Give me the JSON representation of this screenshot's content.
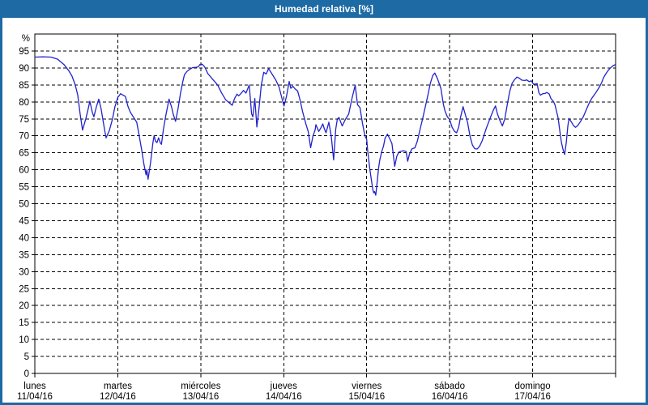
{
  "window": {
    "title": "Humedad relativa [%]",
    "titlebar_color": "#1d6aa5",
    "frame_color": "#1d6aa5",
    "background_color": "#ffffff"
  },
  "chart_data": {
    "type": "line",
    "title": "Humedad relativa [%]",
    "ylabel": "%",
    "xlabel": "",
    "ylim": [
      0,
      100
    ],
    "y_ticks": [
      0,
      5,
      10,
      15,
      20,
      25,
      30,
      35,
      40,
      45,
      50,
      55,
      60,
      65,
      70,
      75,
      80,
      85,
      90,
      95
    ],
    "grid": "dashed-black",
    "legend_position": "none",
    "line_color": "#2222cc",
    "axis_color": "#000000",
    "x_days": [
      {
        "name": "lunes",
        "date": "11/04/16"
      },
      {
        "name": "martes",
        "date": "12/04/16"
      },
      {
        "name": "miércoles",
        "date": "13/04/16"
      },
      {
        "name": "jueves",
        "date": "14/04/16"
      },
      {
        "name": "viernes",
        "date": "15/04/16"
      },
      {
        "name": "sábado",
        "date": "16/04/16"
      },
      {
        "name": "domingo",
        "date": "17/04/16"
      }
    ],
    "xlim_days": [
      0,
      7
    ],
    "series": [
      {
        "name": "Humedad relativa",
        "points": [
          [
            0.0,
            93.2
          ],
          [
            0.097,
            93.3
          ],
          [
            0.195,
            93.2
          ],
          [
            0.273,
            92.6
          ],
          [
            0.351,
            91.0
          ],
          [
            0.409,
            89.2
          ],
          [
            0.448,
            87.6
          ],
          [
            0.487,
            85.0
          ],
          [
            0.517,
            82.0
          ],
          [
            0.546,
            76.5
          ],
          [
            0.575,
            71.7
          ],
          [
            0.614,
            75.0
          ],
          [
            0.643,
            78.0
          ],
          [
            0.663,
            80.2
          ],
          [
            0.692,
            77.0
          ],
          [
            0.712,
            75.6
          ],
          [
            0.741,
            78.5
          ],
          [
            0.77,
            80.8
          ],
          [
            0.799,
            78.0
          ],
          [
            0.829,
            73.5
          ],
          [
            0.858,
            69.4
          ],
          [
            0.897,
            71.5
          ],
          [
            0.936,
            75.0
          ],
          [
            0.965,
            78.5
          ],
          [
            1.0,
            81.3
          ],
          [
            1.033,
            82.4
          ],
          [
            1.063,
            82.0
          ],
          [
            1.092,
            81.6
          ],
          [
            1.121,
            78.8
          ],
          [
            1.15,
            77.0
          ],
          [
            1.189,
            75.5
          ],
          [
            1.228,
            74.0
          ],
          [
            1.258,
            70.0
          ],
          [
            1.287,
            66.0
          ],
          [
            1.316,
            61.5
          ],
          [
            1.34,
            58.5
          ],
          [
            1.35,
            60.0
          ],
          [
            1.365,
            57.2
          ],
          [
            1.394,
            62.0
          ],
          [
            1.423,
            68.0
          ],
          [
            1.438,
            70.1
          ],
          [
            1.453,
            68.5
          ],
          [
            1.472,
            68.0
          ],
          [
            1.492,
            69.4
          ],
          [
            1.511,
            68.0
          ],
          [
            1.526,
            67.5
          ],
          [
            1.55,
            72.0
          ],
          [
            1.579,
            76.0
          ],
          [
            1.618,
            80.8
          ],
          [
            1.648,
            78.5
          ],
          [
            1.667,
            76.5
          ],
          [
            1.696,
            74.3
          ],
          [
            1.726,
            78.0
          ],
          [
            1.755,
            82.5
          ],
          [
            1.784,
            86.0
          ],
          [
            1.803,
            88.0
          ],
          [
            1.833,
            89.0
          ],
          [
            1.862,
            89.5
          ],
          [
            1.901,
            90.1
          ],
          [
            1.94,
            90.2
          ],
          [
            1.969,
            90.3
          ],
          [
            1.989,
            91.0
          ],
          [
            2.018,
            91.1
          ],
          [
            2.047,
            90.3
          ],
          [
            2.086,
            88.3
          ],
          [
            2.145,
            86.6
          ],
          [
            2.203,
            85.0
          ],
          [
            2.252,
            82.6
          ],
          [
            2.301,
            80.6
          ],
          [
            2.34,
            79.8
          ],
          [
            2.379,
            79.0
          ],
          [
            2.408,
            81.0
          ],
          [
            2.437,
            82.3
          ],
          [
            2.457,
            81.8
          ],
          [
            2.486,
            82.5
          ],
          [
            2.515,
            83.4
          ],
          [
            2.545,
            82.6
          ],
          [
            2.584,
            85.0
          ],
          [
            2.613,
            76.5
          ],
          [
            2.628,
            75.6
          ],
          [
            2.652,
            81.0
          ],
          [
            2.676,
            72.6
          ],
          [
            2.701,
            78.0
          ],
          [
            2.73,
            85.0
          ],
          [
            2.759,
            88.7
          ],
          [
            2.788,
            88.2
          ],
          [
            2.818,
            89.8
          ],
          [
            2.857,
            88.3
          ],
          [
            2.905,
            86.4
          ],
          [
            2.944,
            84.4
          ],
          [
            2.974,
            81.5
          ],
          [
            3.003,
            78.8
          ],
          [
            3.032,
            81.5
          ],
          [
            3.066,
            86.0
          ],
          [
            3.085,
            84.0
          ],
          [
            3.11,
            84.6
          ],
          [
            3.139,
            83.8
          ],
          [
            3.168,
            83.2
          ],
          [
            3.198,
            80.4
          ],
          [
            3.227,
            77.2
          ],
          [
            3.266,
            73.6
          ],
          [
            3.295,
            71.3
          ],
          [
            3.324,
            66.5
          ],
          [
            3.353,
            70.0
          ],
          [
            3.378,
            71.7
          ],
          [
            3.388,
            73.3
          ],
          [
            3.422,
            71.3
          ],
          [
            3.451,
            72.5
          ],
          [
            3.471,
            73.5
          ],
          [
            3.49,
            72.0
          ],
          [
            3.51,
            70.9
          ],
          [
            3.544,
            74.0
          ],
          [
            3.573,
            69.8
          ],
          [
            3.602,
            62.9
          ],
          [
            3.627,
            72.0
          ],
          [
            3.646,
            75.0
          ],
          [
            3.666,
            75.4
          ],
          [
            3.705,
            72.9
          ],
          [
            3.744,
            74.9
          ],
          [
            3.783,
            76.4
          ],
          [
            3.822,
            81.0
          ],
          [
            3.861,
            84.9
          ],
          [
            3.89,
            79.2
          ],
          [
            3.919,
            78.3
          ],
          [
            3.949,
            73.7
          ],
          [
            3.978,
            70.0
          ],
          [
            4.0,
            69.0
          ],
          [
            4.012,
            65.7
          ],
          [
            4.036,
            60.5
          ],
          [
            4.056,
            57.0
          ],
          [
            4.075,
            54.0
          ],
          [
            4.085,
            53.2
          ],
          [
            4.095,
            53.6
          ],
          [
            4.109,
            52.5
          ],
          [
            4.129,
            57.0
          ],
          [
            4.143,
            60.5
          ],
          [
            4.158,
            62.9
          ],
          [
            4.182,
            65.5
          ],
          [
            4.202,
            66.9
          ],
          [
            4.221,
            69.3
          ],
          [
            4.251,
            70.5
          ],
          [
            4.28,
            69.0
          ],
          [
            4.304,
            67.7
          ],
          [
            4.338,
            61.0
          ],
          [
            4.363,
            64.0
          ],
          [
            4.387,
            65.2
          ],
          [
            4.416,
            65.5
          ],
          [
            4.446,
            65.6
          ],
          [
            4.475,
            65.4
          ],
          [
            4.494,
            62.5
          ],
          [
            4.514,
            64.5
          ],
          [
            4.543,
            66.1
          ],
          [
            4.582,
            66.5
          ],
          [
            4.611,
            68.5
          ],
          [
            4.641,
            71.7
          ],
          [
            4.675,
            75.2
          ],
          [
            4.709,
            78.8
          ],
          [
            4.738,
            82.0
          ],
          [
            4.767,
            85.5
          ],
          [
            4.797,
            87.8
          ],
          [
            4.821,
            88.5
          ],
          [
            4.855,
            86.7
          ],
          [
            4.894,
            84.0
          ],
          [
            4.923,
            79.4
          ],
          [
            4.943,
            77.4
          ],
          [
            4.972,
            75.6
          ],
          [
            5.0,
            74.8
          ],
          [
            5.03,
            72.5
          ],
          [
            5.059,
            71.3
          ],
          [
            5.084,
            70.9
          ],
          [
            5.108,
            72.5
          ],
          [
            5.128,
            75.2
          ],
          [
            5.162,
            78.6
          ],
          [
            5.186,
            76.5
          ],
          [
            5.215,
            74.0
          ],
          [
            5.245,
            70.0
          ],
          [
            5.274,
            67.3
          ],
          [
            5.303,
            66.2
          ],
          [
            5.332,
            66.1
          ],
          [
            5.362,
            67.0
          ],
          [
            5.391,
            68.5
          ],
          [
            5.44,
            72.1
          ],
          [
            5.488,
            75.2
          ],
          [
            5.527,
            77.6
          ],
          [
            5.552,
            78.8
          ],
          [
            5.576,
            76.5
          ],
          [
            5.606,
            74.5
          ],
          [
            5.635,
            72.9
          ],
          [
            5.664,
            75.0
          ],
          [
            5.693,
            79.0
          ],
          [
            5.723,
            83.0
          ],
          [
            5.752,
            85.5
          ],
          [
            5.781,
            86.5
          ],
          [
            5.81,
            87.3
          ],
          [
            5.84,
            87.0
          ],
          [
            5.869,
            86.4
          ],
          [
            5.908,
            86.3
          ],
          [
            5.927,
            86.5
          ],
          [
            5.957,
            86.0
          ],
          [
            5.986,
            86.2
          ],
          [
            6.01,
            85.2
          ],
          [
            6.035,
            85.3
          ],
          [
            6.054,
            85.4
          ],
          [
            6.074,
            82.8
          ],
          [
            6.093,
            82.0
          ],
          [
            6.122,
            82.4
          ],
          [
            6.152,
            82.5
          ],
          [
            6.171,
            82.8
          ],
          [
            6.2,
            82.3
          ],
          [
            6.22,
            81.0
          ],
          [
            6.249,
            80.2
          ],
          [
            6.269,
            79.2
          ],
          [
            6.288,
            77.2
          ],
          [
            6.308,
            75.2
          ],
          [
            6.327,
            71.5
          ],
          [
            6.347,
            68.1
          ],
          [
            6.366,
            66.0
          ],
          [
            6.386,
            64.5
          ],
          [
            6.405,
            68.0
          ],
          [
            6.425,
            73.0
          ],
          [
            6.439,
            75.1
          ],
          [
            6.464,
            74.2
          ],
          [
            6.493,
            73.0
          ],
          [
            6.517,
            72.5
          ],
          [
            6.542,
            73.0
          ],
          [
            6.571,
            74.0
          ],
          [
            6.61,
            75.6
          ],
          [
            6.649,
            77.8
          ],
          [
            6.688,
            80.0
          ],
          [
            6.717,
            81.2
          ],
          [
            6.756,
            82.5
          ],
          [
            6.805,
            84.4
          ],
          [
            6.834,
            85.8
          ],
          [
            6.854,
            87.1
          ],
          [
            6.883,
            88.3
          ],
          [
            6.912,
            89.3
          ],
          [
            6.941,
            90.1
          ],
          [
            6.971,
            90.7
          ],
          [
            6.99,
            90.9
          ]
        ]
      }
    ]
  }
}
